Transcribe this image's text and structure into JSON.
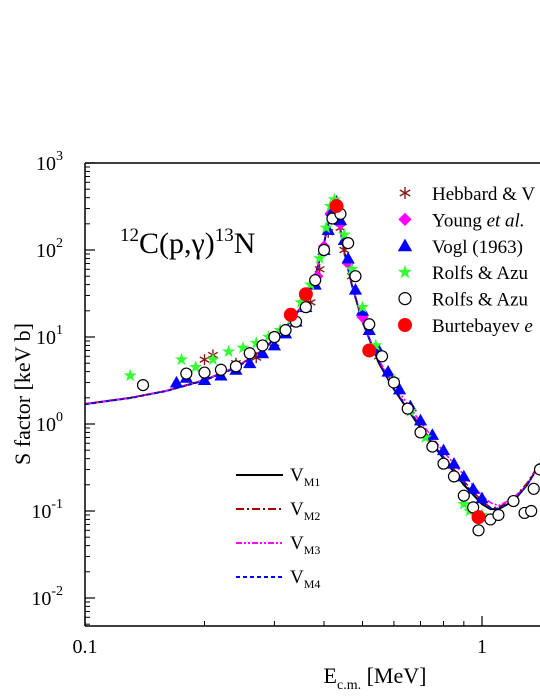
{
  "chart_data": {
    "type": "scatter",
    "title": "",
    "reaction": {
      "pre": "12",
      "mid": "C(p,γ)",
      "post": "13",
      "tail": "N"
    },
    "xlabel": {
      "main": "E",
      "sub": "c.m.",
      "unit": " [MeV]"
    },
    "ylabel": "S factor [keV b]",
    "xscale": "log",
    "yscale": "log",
    "xlim": [
      0.1,
      1.4
    ],
    "ylim": [
      0.005,
      1000
    ],
    "xticks": [
      {
        "v": 0.1,
        "label": "0.1"
      },
      {
        "v": 1,
        "label": "1"
      }
    ],
    "yticks": [
      {
        "v": 0.01,
        "base": "10",
        "exp": "-2"
      },
      {
        "v": 0.1,
        "base": "10",
        "exp": "-1"
      },
      {
        "v": 1,
        "base": "10",
        "exp": "0"
      },
      {
        "v": 10,
        "base": "10",
        "exp": "1"
      },
      {
        "v": 100,
        "base": "10",
        "exp": "2"
      },
      {
        "v": 1000,
        "base": "10",
        "exp": "3"
      }
    ],
    "legend_data": [
      {
        "label": "Hebbard & V",
        "marker": "asterisk",
        "color": "#8b1a1a"
      },
      {
        "label_parts": [
          "Young ",
          "et al.",
          ""
        ],
        "marker": "diamond",
        "color": "#ff00ff"
      },
      {
        "label": "Vogl (1963)",
        "marker": "triangle",
        "color": "#0000ff"
      },
      {
        "label": "Rolfs & Azu",
        "marker": "star",
        "color": "#33ff33"
      },
      {
        "label": "Rolfs & Azu",
        "marker": "open-circle",
        "color": "#000000"
      },
      {
        "label_parts": [
          "Burtebayev ",
          "e",
          ""
        ],
        "marker": "filled-circle",
        "color": "#ff0000"
      }
    ],
    "legend_models": [
      {
        "main": "V",
        "sub": "M1",
        "color": "#000000",
        "dash": ""
      },
      {
        "main": "V",
        "sub": "M2",
        "color": "#aa0000",
        "dash": "8,3,2,3"
      },
      {
        "main": "V",
        "sub": "M3",
        "color": "#ff00ff",
        "dash": "6,2,2,2,2,2"
      },
      {
        "main": "V",
        "sub": "M4",
        "color": "#0000ff",
        "dash": "4,3"
      }
    ],
    "model_curves": [
      {
        "name": "VM1",
        "color": "#000000",
        "dash": "",
        "x": [
          0.1,
          0.13,
          0.16,
          0.2,
          0.24,
          0.28,
          0.32,
          0.35,
          0.38,
          0.4,
          0.41,
          0.42,
          0.43,
          0.44,
          0.45,
          0.47,
          0.5,
          0.55,
          0.6,
          0.7,
          0.8,
          0.9,
          1.0,
          1.05,
          1.1,
          1.2,
          1.3,
          1.4
        ],
        "y": [
          1.7,
          2.0,
          2.4,
          3.2,
          4.5,
          7.0,
          13,
          22,
          50,
          120,
          200,
          300,
          280,
          170,
          95,
          40,
          15,
          5,
          2.5,
          0.9,
          0.4,
          0.2,
          0.12,
          0.105,
          0.105,
          0.13,
          0.2,
          0.35
        ]
      },
      {
        "name": "VM2",
        "color": "#aa0000",
        "dash": "8,3,2,3",
        "x": [
          0.1,
          0.13,
          0.16,
          0.2,
          0.24,
          0.28,
          0.32,
          0.35,
          0.38,
          0.4,
          0.41,
          0.42,
          0.43,
          0.44,
          0.45,
          0.47,
          0.5,
          0.55,
          0.6,
          0.7,
          0.8,
          0.9,
          1.0,
          1.05,
          1.1,
          1.2,
          1.3,
          1.4
        ],
        "y": [
          1.7,
          2.0,
          2.4,
          3.2,
          4.5,
          7.0,
          13,
          22,
          50,
          120,
          200,
          300,
          280,
          170,
          95,
          40,
          15,
          5.2,
          2.6,
          0.95,
          0.42,
          0.22,
          0.13,
          0.11,
          0.11,
          0.14,
          0.21,
          0.36
        ]
      },
      {
        "name": "VM3",
        "color": "#ff00ff",
        "dash": "6,2,2,2,2,2",
        "x": [
          0.1,
          0.13,
          0.16,
          0.2,
          0.24,
          0.28,
          0.32,
          0.35,
          0.38,
          0.4,
          0.41,
          0.42,
          0.43,
          0.44,
          0.45,
          0.47,
          0.5,
          0.55,
          0.6,
          0.7,
          0.8,
          0.9,
          1.0,
          1.05,
          1.1,
          1.2,
          1.3,
          1.4
        ],
        "y": [
          1.7,
          2.0,
          2.4,
          3.2,
          4.5,
          7.0,
          13,
          22,
          50,
          120,
          200,
          300,
          280,
          170,
          95,
          40,
          15,
          5.4,
          2.8,
          1.05,
          0.48,
          0.26,
          0.15,
          0.125,
          0.115,
          0.14,
          0.2,
          0.34
        ]
      },
      {
        "name": "VM4",
        "color": "#0000ff",
        "dash": "4,3",
        "x": [
          0.1,
          0.13,
          0.16,
          0.2,
          0.24,
          0.28,
          0.32,
          0.35,
          0.38,
          0.4,
          0.41,
          0.42,
          0.43,
          0.44,
          0.45,
          0.47,
          0.5,
          0.55,
          0.6,
          0.7,
          0.8,
          0.9,
          1.0,
          1.05,
          1.1,
          1.2,
          1.3,
          1.4
        ],
        "y": [
          1.68,
          1.98,
          2.38,
          3.15,
          4.4,
          6.9,
          12.8,
          21.5,
          49,
          118,
          198,
          295,
          275,
          168,
          94,
          39,
          14.8,
          5.1,
          2.55,
          0.92,
          0.41,
          0.21,
          0.125,
          0.108,
          0.107,
          0.132,
          0.2,
          0.35
        ]
      }
    ],
    "series": [
      {
        "name": "Hebbard & V",
        "marker": "asterisk",
        "color": "#8b1a1a",
        "points": [
          [
            0.2,
            5.5
          ],
          [
            0.21,
            6.2
          ],
          [
            0.24,
            5.0
          ],
          [
            0.27,
            5.8
          ],
          [
            0.3,
            8.5
          ],
          [
            0.34,
            15
          ],
          [
            0.37,
            25
          ],
          [
            0.39,
            60
          ],
          [
            0.41,
            160
          ],
          [
            0.42,
            240
          ],
          [
            0.43,
            250
          ],
          [
            0.44,
            180
          ],
          [
            0.45,
            100
          ],
          [
            0.47,
            50
          ],
          [
            0.5,
            18
          ],
          [
            0.55,
            6
          ],
          [
            0.6,
            3
          ]
        ]
      },
      {
        "name": "Young et al.",
        "marker": "diamond",
        "color": "#ff00ff",
        "points": [
          [
            0.385,
            50
          ],
          [
            0.4,
            110
          ],
          [
            0.415,
            260
          ],
          [
            0.425,
            310
          ],
          [
            0.44,
            200
          ],
          [
            0.46,
            70
          ],
          [
            0.5,
            17
          ]
        ]
      },
      {
        "name": "Vogl (1963)",
        "marker": "triangle",
        "color": "#0000ff",
        "points": [
          [
            0.17,
            3.0
          ],
          [
            0.18,
            3.4
          ],
          [
            0.2,
            3.2
          ],
          [
            0.22,
            3.6
          ],
          [
            0.24,
            4.2
          ],
          [
            0.26,
            5.0
          ],
          [
            0.28,
            6.5
          ],
          [
            0.3,
            8.0
          ],
          [
            0.32,
            11
          ],
          [
            0.34,
            15
          ],
          [
            0.36,
            22
          ],
          [
            0.38,
            40
          ],
          [
            0.4,
            100
          ],
          [
            0.41,
            170
          ],
          [
            0.42,
            280
          ],
          [
            0.43,
            360
          ],
          [
            0.44,
            220
          ],
          [
            0.45,
            130
          ],
          [
            0.46,
            80
          ],
          [
            0.48,
            35
          ],
          [
            0.5,
            20
          ],
          [
            0.52,
            12
          ],
          [
            0.55,
            7
          ],
          [
            0.58,
            4
          ],
          [
            0.62,
            2.5
          ],
          [
            0.66,
            1.6
          ],
          [
            0.7,
            1.1
          ],
          [
            0.75,
            0.75
          ],
          [
            0.8,
            0.5
          ],
          [
            0.85,
            0.35
          ],
          [
            0.9,
            0.25
          ],
          [
            0.95,
            0.18
          ],
          [
            1.0,
            0.14
          ]
        ]
      },
      {
        "name": "Rolfs & Azu (stars)",
        "marker": "star",
        "color": "#33ff33",
        "points": [
          [
            0.13,
            3.6
          ],
          [
            0.175,
            5.5
          ],
          [
            0.19,
            4.5
          ],
          [
            0.21,
            5.5
          ],
          [
            0.23,
            6.8
          ],
          [
            0.25,
            7.5
          ],
          [
            0.27,
            8.5
          ],
          [
            0.29,
            10
          ],
          [
            0.31,
            12
          ],
          [
            0.33,
            16
          ],
          [
            0.35,
            25
          ],
          [
            0.37,
            40
          ],
          [
            0.39,
            80
          ],
          [
            0.405,
            180
          ],
          [
            0.415,
            320
          ],
          [
            0.425,
            380
          ],
          [
            0.435,
            300
          ],
          [
            0.45,
            150
          ],
          [
            0.47,
            60
          ],
          [
            0.5,
            22
          ],
          [
            0.54,
            8
          ],
          [
            0.6,
            3.2
          ],
          [
            0.66,
            1.4
          ],
          [
            0.72,
            0.7
          ],
          [
            0.8,
            0.35
          ],
          [
            0.85,
            0.25
          ],
          [
            0.9,
            0.12
          ],
          [
            0.93,
            0.1
          ],
          [
            1.0,
            0.09
          ]
        ]
      },
      {
        "name": "Rolfs & Azu (circles)",
        "marker": "open-circle",
        "color": "#000000",
        "points": [
          [
            0.14,
            2.8
          ],
          [
            0.18,
            3.8
          ],
          [
            0.2,
            3.9
          ],
          [
            0.22,
            4.2
          ],
          [
            0.24,
            4.6
          ],
          [
            0.26,
            6.5
          ],
          [
            0.28,
            8.0
          ],
          [
            0.3,
            10
          ],
          [
            0.32,
            12
          ],
          [
            0.34,
            15
          ],
          [
            0.36,
            22
          ],
          [
            0.38,
            45
          ],
          [
            0.4,
            100
          ],
          [
            0.42,
            230
          ],
          [
            0.44,
            260
          ],
          [
            0.46,
            120
          ],
          [
            0.48,
            50
          ],
          [
            0.52,
            14
          ],
          [
            0.56,
            6
          ],
          [
            0.6,
            3
          ],
          [
            0.65,
            1.5
          ],
          [
            0.7,
            0.8
          ],
          [
            0.75,
            0.55
          ],
          [
            0.8,
            0.35
          ],
          [
            0.85,
            0.25
          ],
          [
            0.9,
            0.15
          ],
          [
            0.95,
            0.11
          ],
          [
            0.98,
            0.06
          ],
          [
            1.05,
            0.08
          ],
          [
            1.1,
            0.09
          ],
          [
            1.2,
            0.13
          ],
          [
            1.28,
            0.095
          ],
          [
            1.33,
            0.1
          ],
          [
            1.35,
            0.18
          ],
          [
            1.4,
            0.3
          ]
        ]
      },
      {
        "name": "Burtebayev e",
        "marker": "filled-circle",
        "color": "#ff0000",
        "points": [
          [
            0.33,
            18
          ],
          [
            0.36,
            31
          ],
          [
            0.43,
            320
          ],
          [
            0.52,
            7
          ],
          [
            0.98,
            0.085
          ]
        ]
      }
    ]
  }
}
